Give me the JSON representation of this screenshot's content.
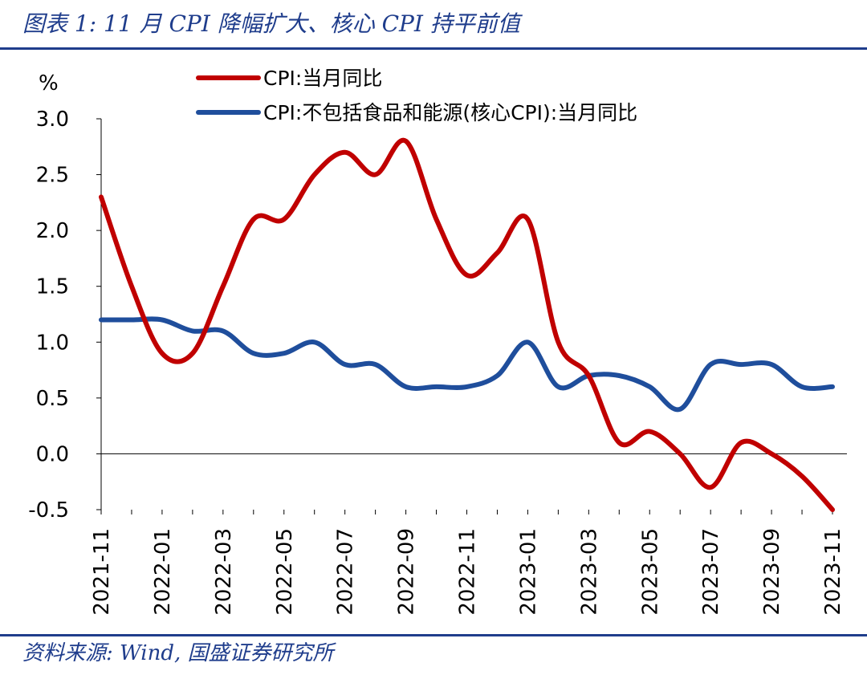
{
  "figure": {
    "title": "图表 1: 11 月 CPI 降幅扩大、核心 CPI 持平前值",
    "source": "资料来源: Wind, 国盛证券研究所"
  },
  "chart_data": {
    "type": "line",
    "ylabel": "%",
    "xlabel": "",
    "ylim": [
      -0.5,
      3.0
    ],
    "yticks": [
      "3.0",
      "2.5",
      "2.0",
      "1.5",
      "1.0",
      "0.5",
      "0.0",
      "-0.5"
    ],
    "ytick_values": [
      3.0,
      2.5,
      2.0,
      1.5,
      1.0,
      0.5,
      0.0,
      -0.5
    ],
    "x": [
      "2021-11",
      "2021-12",
      "2022-01",
      "2022-02",
      "2022-03",
      "2022-04",
      "2022-05",
      "2022-06",
      "2022-07",
      "2022-08",
      "2022-09",
      "2022-10",
      "2022-11",
      "2022-12",
      "2023-01",
      "2023-02",
      "2023-03",
      "2023-04",
      "2023-05",
      "2023-06",
      "2023-07",
      "2023-08",
      "2023-09",
      "2023-10",
      "2023-11"
    ],
    "xtick_labels": [
      "2021-11",
      "2022-01",
      "2022-03",
      "2022-05",
      "2022-07",
      "2022-09",
      "2022-11",
      "2023-01",
      "2023-03",
      "2023-05",
      "2023-07",
      "2023-09",
      "2023-11"
    ],
    "legend_position": "top",
    "grid": false,
    "series": [
      {
        "name": "CPI:当月同比",
        "color": "#c00000",
        "values": [
          2.3,
          1.5,
          0.9,
          0.9,
          1.5,
          2.1,
          2.1,
          2.5,
          2.7,
          2.5,
          2.8,
          2.1,
          1.6,
          1.8,
          2.1,
          1.0,
          0.7,
          0.1,
          0.2,
          0.0,
          -0.3,
          0.1,
          0.0,
          -0.2,
          -0.5
        ]
      },
      {
        "name": "CPI:不包括食品和能源(核心CPI):当月同比",
        "color": "#1f4e9c",
        "values": [
          1.2,
          1.2,
          1.2,
          1.1,
          1.1,
          0.9,
          0.9,
          1.0,
          0.8,
          0.8,
          0.6,
          0.6,
          0.6,
          0.7,
          1.0,
          0.6,
          0.7,
          0.7,
          0.6,
          0.4,
          0.8,
          0.8,
          0.8,
          0.6,
          0.6
        ]
      }
    ]
  }
}
